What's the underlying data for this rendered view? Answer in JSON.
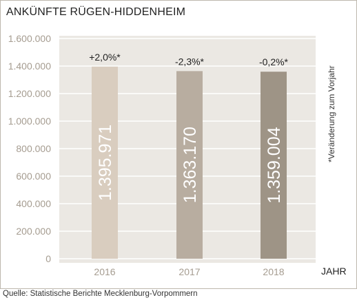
{
  "chart_data": {
    "type": "bar",
    "title": "ANKÜNFTE RÜGEN-HIDDENHEIM",
    "xlabel": "JAHR",
    "ylabel": "",
    "categories": [
      "2016",
      "2017",
      "2018"
    ],
    "values": [
      1395971,
      1363170,
      1359004
    ],
    "value_labels": [
      "1.395.971",
      "1.363.170",
      "1.359.004"
    ],
    "change_labels": [
      "+2,0%*",
      "-2,3%*",
      "-0,2%*"
    ],
    "ylim": [
      0,
      1600000
    ],
    "yticks": [
      0,
      200000,
      400000,
      600000,
      800000,
      1000000,
      1200000,
      1400000,
      1600000
    ],
    "ytick_labels": [
      "0",
      "200.000",
      "400.000",
      "600.000",
      "800.000",
      "1.000.000",
      "1.200.000",
      "1.400.000",
      "1.600.000"
    ],
    "bar_colors": [
      "#d9cdbf",
      "#b8ada0",
      "#9e9486"
    ],
    "grid": true,
    "footnote": "*Veränderung zum Vorjahr",
    "source": "Quelle: Statistische Berichte Mecklenburg-Vorpommern"
  },
  "colors": {
    "plot_background": "#ebe8e3",
    "grid": "#ffffff",
    "frame": "#bdb7ad",
    "tick_label": "#a59c90"
  }
}
